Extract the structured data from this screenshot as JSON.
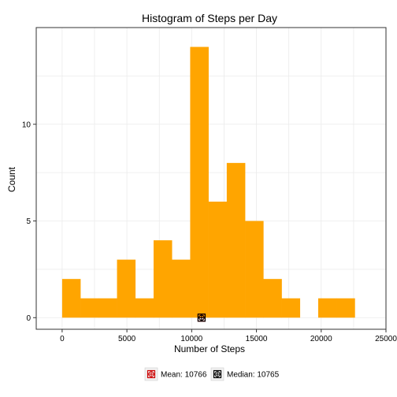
{
  "chart_data": {
    "type": "bar",
    "title": "Histogram of Steps per Day",
    "xlabel": "Number of Steps",
    "ylabel": "Count",
    "bin_width": 1412,
    "bins": [
      {
        "start": 0,
        "count": 2
      },
      {
        "start": 1412,
        "count": 1
      },
      {
        "start": 2824,
        "count": 1
      },
      {
        "start": 4236,
        "count": 3
      },
      {
        "start": 5648,
        "count": 1
      },
      {
        "start": 7060,
        "count": 4
      },
      {
        "start": 8472,
        "count": 3
      },
      {
        "start": 9884,
        "count": 14
      },
      {
        "start": 11296,
        "count": 6
      },
      {
        "start": 12708,
        "count": 8
      },
      {
        "start": 14120,
        "count": 5
      },
      {
        "start": 15532,
        "count": 2
      },
      {
        "start": 16944,
        "count": 1
      },
      {
        "start": 18356,
        "count": 0
      },
      {
        "start": 19768,
        "count": 1
      },
      {
        "start": 21180,
        "count": 1
      }
    ],
    "xlim": [
      -2000,
      25000
    ],
    "ylim": [
      -0.6,
      15
    ],
    "x_ticks": [
      0,
      5000,
      10000,
      15000,
      20000,
      25000
    ],
    "x_tick_labels": [
      "0",
      "5000",
      "10000",
      "15000",
      "20000",
      "25000"
    ],
    "y_ticks": [
      0,
      5,
      10
    ],
    "y_tick_labels": [
      "0",
      "5",
      "10"
    ],
    "bar_color": "#FFA500",
    "grid": true,
    "legend_position": "bottom",
    "markers": [
      {
        "name": "Mean",
        "label": "Mean: 10766",
        "x": 10766,
        "y": 0,
        "color": "#CC0000"
      },
      {
        "name": "Median",
        "label": "Median: 10765",
        "x": 10765,
        "y": 0,
        "color": "#000000"
      }
    ]
  }
}
